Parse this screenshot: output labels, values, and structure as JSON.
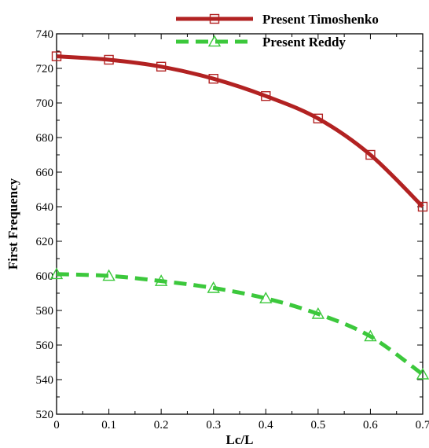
{
  "chart_data": {
    "type": "line",
    "xlabel": "Lc/L",
    "ylabel": "First Frequency",
    "xlim": [
      0,
      0.7
    ],
    "ylim": [
      520,
      740
    ],
    "x_ticks": [
      "0",
      "0.1",
      "0.2",
      "0.3",
      "0.4",
      "0.5",
      "0.6",
      "0.7"
    ],
    "y_ticks": [
      "520",
      "540",
      "560",
      "580",
      "600",
      "620",
      "640",
      "660",
      "680",
      "700",
      "720",
      "740"
    ],
    "grid": false,
    "legend_position": "top-right",
    "x": [
      0,
      0.1,
      0.2,
      0.3,
      0.4,
      0.5,
      0.6,
      0.7
    ],
    "series": [
      {
        "name": "Present Timoshenko",
        "values": [
          727,
          725,
          721,
          714,
          704,
          691,
          670,
          640
        ],
        "color": "#b22222",
        "line_style": "solid",
        "marker": "square"
      },
      {
        "name": "Present Reddy",
        "values": [
          601,
          600,
          597,
          593,
          587,
          578,
          565,
          543
        ],
        "color": "#3cc83c",
        "line_style": "dashed",
        "marker": "triangle"
      }
    ]
  }
}
